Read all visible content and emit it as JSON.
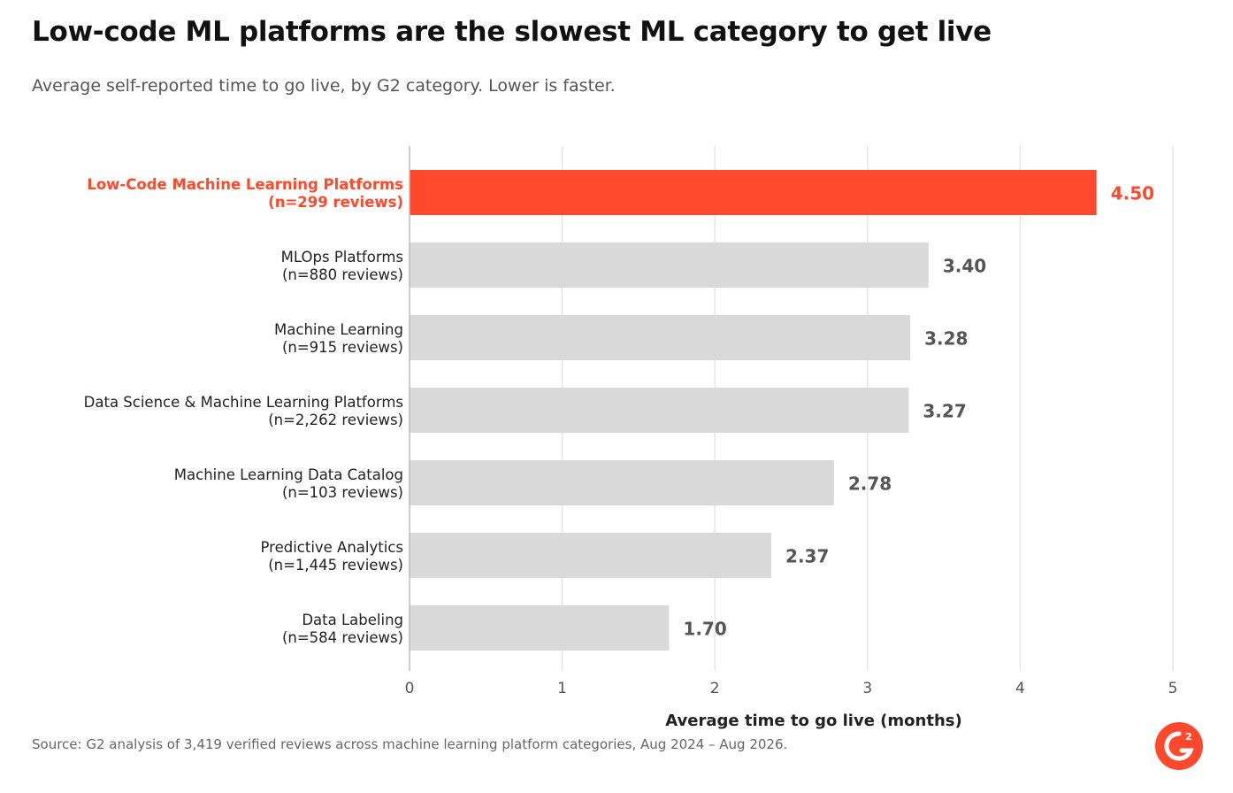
{
  "title": "Low-code ML platforms are the slowest ML category to get live",
  "subtitle": "Average self-reported time to go live, by G2 category. Lower is faster.",
  "source": "Source: G2 analysis of 3,419 verified reviews across machine learning platform categories, Aug 2024 – Aug 2026.",
  "logo_text": "G2",
  "chart_data": {
    "type": "bar",
    "orientation": "horizontal",
    "categories": [
      "Low-Code Machine Learning Platforms",
      "MLOps Platforms",
      "Machine Learning",
      "Data Science & Machine Learning Platforms",
      "Machine Learning Data Catalog",
      "Predictive Analytics",
      "Data Labeling"
    ],
    "sample_labels": [
      "(n=299 reviews)",
      "(n=880 reviews)",
      "(n=915 reviews)",
      "(n=2,262 reviews)",
      "(n=103 reviews)",
      "(n=1,445 reviews)",
      "(n=584 reviews)"
    ],
    "values": [
      4.5,
      3.4,
      3.28,
      3.27,
      2.78,
      2.37,
      1.7
    ],
    "value_labels": [
      "4.50",
      "3.40",
      "3.28",
      "3.27",
      "2.78",
      "2.37",
      "1.70"
    ],
    "highlight_index": 0,
    "xlabel": "Average time to go live (months)",
    "ylabel": "",
    "xlim": [
      0,
      5
    ],
    "xticks": [
      0,
      1,
      2,
      3,
      4,
      5
    ],
    "grid": "vertical",
    "colors": {
      "highlight": "#ff492c",
      "default": "#d9d9d9",
      "gridline": "#e6e6e6",
      "value_default": "#555555",
      "label_default": "#222222"
    }
  }
}
